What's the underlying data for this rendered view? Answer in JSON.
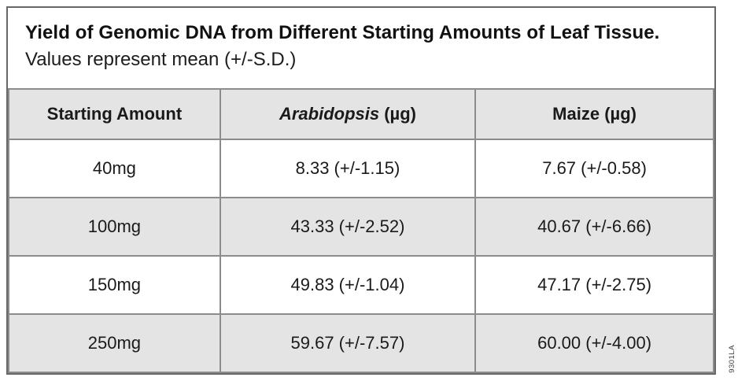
{
  "figure": {
    "title": "Yield of Genomic DNA from Different Starting Amounts of Leaf Tissue.",
    "subtitle": "Values represent mean (+/-S.D.)",
    "part_code": "9301LA"
  },
  "table": {
    "columns": [
      {
        "em": "",
        "rest": "Starting Amount"
      },
      {
        "em": "Arabidopsis",
        "rest": " (µg)"
      },
      {
        "em": "",
        "rest": "Maize (µg)"
      }
    ]
  },
  "chart_data": {
    "type": "table",
    "title": "Yield of Genomic DNA from Different Starting Amounts of Leaf Tissue.",
    "subtitle": "Values represent mean (+/-S.D.)",
    "columns": [
      "Starting Amount",
      "Arabidopsis (µg)",
      "Maize (µg)"
    ],
    "rows": [
      [
        "40mg",
        "8.33 (+/-1.15)",
        "7.67 (+/-0.58)"
      ],
      [
        "100mg",
        "43.33 (+/-2.52)",
        "40.67 (+/-6.66)"
      ],
      [
        "150mg",
        "49.83 (+/-1.04)",
        "47.17 (+/-2.75)"
      ],
      [
        "250mg",
        "59.67 (+/-7.57)",
        "60.00 (+/-4.00)"
      ]
    ],
    "numeric": {
      "starting_amount_mg": [
        40,
        100,
        150,
        250
      ],
      "arabidopsis_mean_ug": [
        8.33,
        43.33,
        49.83,
        59.67
      ],
      "arabidopsis_sd_ug": [
        1.15,
        2.52,
        1.04,
        7.57
      ],
      "maize_mean_ug": [
        7.67,
        40.67,
        47.17,
        60.0
      ],
      "maize_sd_ug": [
        0.58,
        6.66,
        2.75,
        4.0
      ]
    },
    "layout": {
      "header_fill": "#e4e4e4",
      "row_stripe_fill": "#e4e4e4",
      "grid_line_color": "#8c8c8c",
      "outer_border_color": "#686868",
      "striped_rows": "even"
    }
  },
  "colors": {
    "background": "#ffffff",
    "header_fill": "#e4e4e4",
    "stripe_fill": "#e4e4e4",
    "grid_line": "#8c8c8c",
    "outer_border": "#686868",
    "text": "#1a1a1a"
  }
}
